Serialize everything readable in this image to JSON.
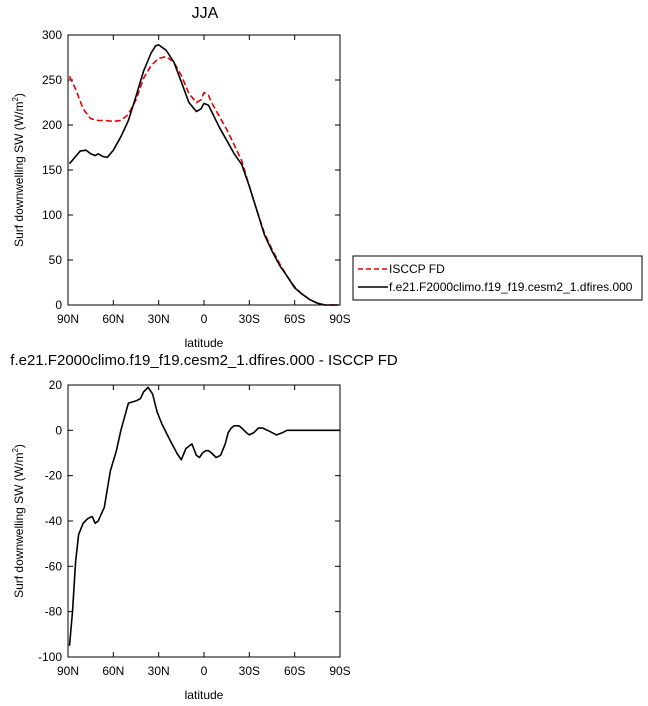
{
  "chart_data": [
    {
      "type": "line",
      "title": "JJA",
      "xlabel": "latitude",
      "ylabel": "Surf downwelling SW (W/m",
      "ylabel_sup": "2",
      "ylabel_end": ")",
      "xlim": [
        90,
        -90
      ],
      "ylim": [
        0,
        300
      ],
      "x_ticks": [
        90,
        60,
        30,
        0,
        -30,
        -60,
        -90
      ],
      "x_tick_labels": [
        "90N",
        "60N",
        "30N",
        "0",
        "30S",
        "60S",
        "90S"
      ],
      "y_ticks": [
        0,
        50,
        100,
        150,
        200,
        250,
        300
      ],
      "y_tick_labels": [
        "0",
        "50",
        "100",
        "150",
        "200",
        "250",
        "300"
      ],
      "legend": "outside-right",
      "series": [
        {
          "name": "ISCCP FD",
          "color": "#e60000",
          "dash": "dashed",
          "x": [
            89,
            85,
            80,
            75,
            70,
            65,
            60,
            55,
            50,
            45,
            40,
            35,
            30,
            25,
            20,
            15,
            10,
            5,
            2,
            0,
            -3,
            -5,
            -10,
            -15,
            -20,
            -25,
            -30,
            -35,
            -40,
            -45,
            -50,
            -55,
            -60,
            -65,
            -70,
            -75,
            -80,
            -85,
            -89
          ],
          "y": [
            254,
            240,
            218,
            207,
            205,
            205,
            204,
            205,
            212,
            228,
            252,
            266,
            274,
            276,
            270,
            255,
            235,
            225,
            228,
            236,
            233,
            225,
            210,
            195,
            178,
            160,
            132,
            105,
            80,
            62,
            46,
            32,
            20,
            12,
            6,
            2,
            0,
            0,
            0
          ]
        },
        {
          "name": "f.e21.F2000climo.f19_f19.cesm2_1.dfires.000",
          "color": "#000000",
          "dash": "solid",
          "x": [
            89,
            85,
            82,
            78,
            75,
            72,
            70,
            67,
            64,
            60,
            55,
            50,
            45,
            40,
            35,
            32,
            30,
            25,
            20,
            15,
            10,
            5,
            2,
            0,
            -3,
            -5,
            -10,
            -15,
            -20,
            -25,
            -30,
            -35,
            -40,
            -45,
            -50,
            -55,
            -60,
            -65,
            -70,
            -75,
            -80,
            -85,
            -89
          ],
          "y": [
            157,
            165,
            171,
            172,
            168,
            166,
            168,
            165,
            164,
            172,
            187,
            205,
            232,
            260,
            280,
            288,
            289,
            283,
            270,
            248,
            225,
            215,
            218,
            224,
            222,
            215,
            198,
            183,
            168,
            156,
            132,
            105,
            78,
            60,
            44,
            32,
            19,
            12,
            6,
            2,
            0,
            0,
            0
          ]
        }
      ]
    },
    {
      "type": "line",
      "title": "f.e21.F2000climo.f19_f19.cesm2_1.dfires.000 - ISCCP FD",
      "xlabel": "latitude",
      "ylabel": "Surf downwelling SW (W/m",
      "ylabel_sup": "2",
      "ylabel_end": ")",
      "xlim": [
        90,
        -90
      ],
      "ylim": [
        -100,
        20
      ],
      "x_ticks": [
        90,
        60,
        30,
        0,
        -30,
        -60,
        -90
      ],
      "x_tick_labels": [
        "90N",
        "60N",
        "30N",
        "0",
        "30S",
        "60S",
        "90S"
      ],
      "y_ticks": [
        -100,
        -80,
        -60,
        -40,
        -20,
        0,
        20
      ],
      "y_tick_labels": [
        "-100",
        "-80",
        "-60",
        "-40",
        "-20",
        "0",
        "20"
      ],
      "series": [
        {
          "color": "#000000",
          "dash": "solid",
          "x": [
            89,
            87,
            85,
            83,
            80,
            77,
            74,
            72,
            70,
            68,
            66,
            64,
            62,
            58,
            55,
            50,
            45,
            42,
            40,
            37,
            34,
            31,
            28,
            25,
            22,
            18,
            15,
            12,
            10,
            8,
            5,
            3,
            1,
            -1,
            -3,
            -5,
            -8,
            -11,
            -14,
            -16,
            -18,
            -20,
            -23,
            -25,
            -28,
            -30,
            -33,
            -36,
            -39,
            -42,
            -45,
            -48,
            -52,
            -55,
            -58,
            -61,
            -64,
            -67,
            -70,
            -75,
            -80,
            -85,
            -90
          ],
          "y": [
            -95,
            -80,
            -58,
            -46,
            -41,
            -39,
            -38,
            -41,
            -40,
            -37,
            -34,
            -26,
            -18,
            -9,
            0,
            12,
            13,
            14,
            17,
            19,
            16,
            8,
            3,
            -1,
            -5,
            -10,
            -13,
            -8,
            -7,
            -6,
            -11,
            -12,
            -10,
            -9,
            -9,
            -10,
            -12,
            -11,
            -6,
            -1,
            1,
            2,
            2,
            1,
            -1,
            -2,
            -1,
            1,
            1,
            0,
            -1,
            -2,
            -1,
            0,
            0,
            0,
            0,
            0,
            0,
            0,
            0,
            0,
            0
          ]
        }
      ]
    }
  ]
}
